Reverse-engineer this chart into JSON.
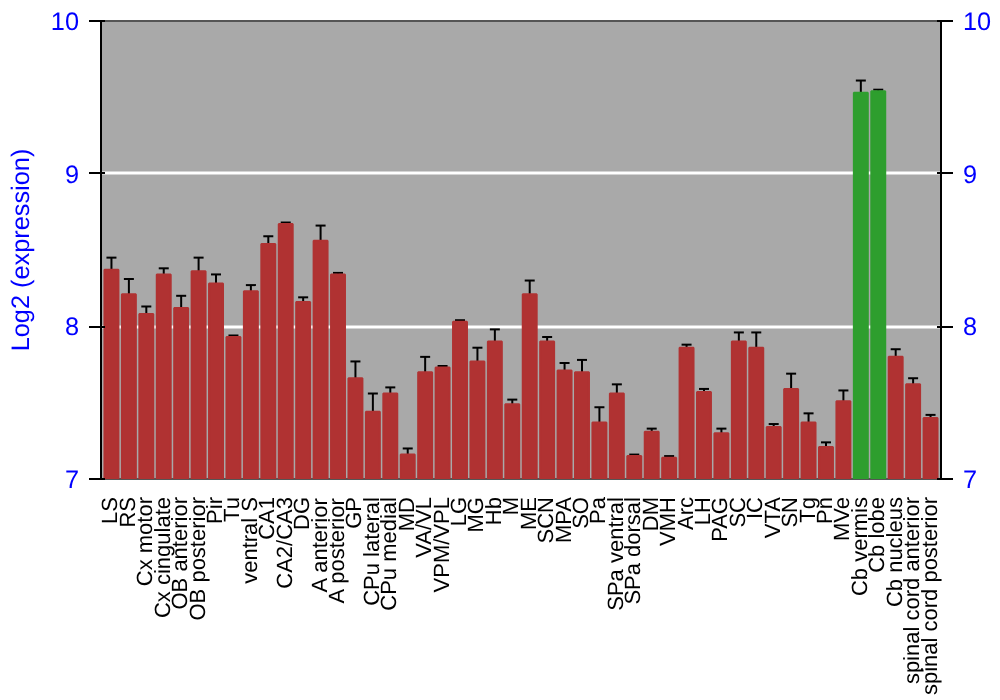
{
  "chart_data": {
    "type": "bar",
    "ylabel": "Log2 (expression)",
    "categories": [
      "LS",
      "RS",
      "Cx motor",
      "Cx cingulate",
      "OB anterior",
      "OB posterior",
      "Pir",
      "Tu",
      "ventral S",
      "CA1",
      "CA2/CA3",
      "DG",
      "A anterior",
      "A posterior",
      "GP",
      "CPu lateral",
      "CPu medial",
      "MD",
      "VA/VL",
      "VPM/VPL",
      "LG",
      "MG",
      "Hb",
      "M",
      "ME",
      "SCN",
      "MPA",
      "SO",
      "Pa",
      "SPa ventral",
      "SPa dorsal",
      "DM",
      "VMH",
      "Arc",
      "LH",
      "PAG",
      "SC",
      "IC",
      "VTA",
      "SN",
      "Tg",
      "Pn",
      "MVe",
      "Cb vermis",
      "Cb lobe",
      "Cb nucleus",
      "spinal cord anterior",
      "spinal cord posterior"
    ],
    "values": [
      8.37,
      8.21,
      8.08,
      8.34,
      8.12,
      8.36,
      8.28,
      7.93,
      8.23,
      8.54,
      8.67,
      8.16,
      8.56,
      8.34,
      7.66,
      7.44,
      7.56,
      7.16,
      7.7,
      7.73,
      8.03,
      7.77,
      7.9,
      7.49,
      8.21,
      7.9,
      7.71,
      7.7,
      7.37,
      7.56,
      7.15,
      7.31,
      7.14,
      7.86,
      7.57,
      7.3,
      7.9,
      7.86,
      7.34,
      7.59,
      7.37,
      7.21,
      7.51,
      9.53,
      9.54,
      7.8,
      7.62,
      7.4
    ],
    "errors": [
      0.08,
      0.1,
      0.05,
      0.04,
      0.08,
      0.09,
      0.06,
      0.01,
      0.04,
      0.05,
      0.01,
      0.03,
      0.1,
      0.01,
      0.11,
      0.12,
      0.04,
      0.04,
      0.1,
      0.01,
      0.01,
      0.09,
      0.08,
      0.03,
      0.09,
      0.03,
      0.05,
      0.08,
      0.1,
      0.06,
      0.01,
      0.02,
      0.01,
      0.02,
      0.02,
      0.03,
      0.06,
      0.1,
      0.02,
      0.1,
      0.06,
      0.03,
      0.07,
      0.08,
      0.01,
      0.05,
      0.04,
      0.02
    ],
    "colors": [
      "#b03232",
      "#b03232",
      "#b03232",
      "#b03232",
      "#b03232",
      "#b03232",
      "#b03232",
      "#b03232",
      "#b03232",
      "#b03232",
      "#b03232",
      "#b03232",
      "#b03232",
      "#b03232",
      "#b03232",
      "#b03232",
      "#b03232",
      "#b03232",
      "#b03232",
      "#b03232",
      "#b03232",
      "#b03232",
      "#b03232",
      "#b03232",
      "#b03232",
      "#b03232",
      "#b03232",
      "#b03232",
      "#b03232",
      "#b03232",
      "#b03232",
      "#b03232",
      "#b03232",
      "#b03232",
      "#b03232",
      "#b03232",
      "#b03232",
      "#b03232",
      "#b03232",
      "#b03232",
      "#b03232",
      "#b03232",
      "#b03232",
      "#2e9e2e",
      "#2e9e2e",
      "#b03232",
      "#b03232",
      "#b03232"
    ],
    "ylim": [
      7,
      10
    ],
    "yticks": [
      7,
      8,
      9,
      10
    ],
    "y2lim": [
      7,
      10
    ],
    "y2ticks": [
      7,
      8,
      9,
      10
    ],
    "grid": "y"
  }
}
